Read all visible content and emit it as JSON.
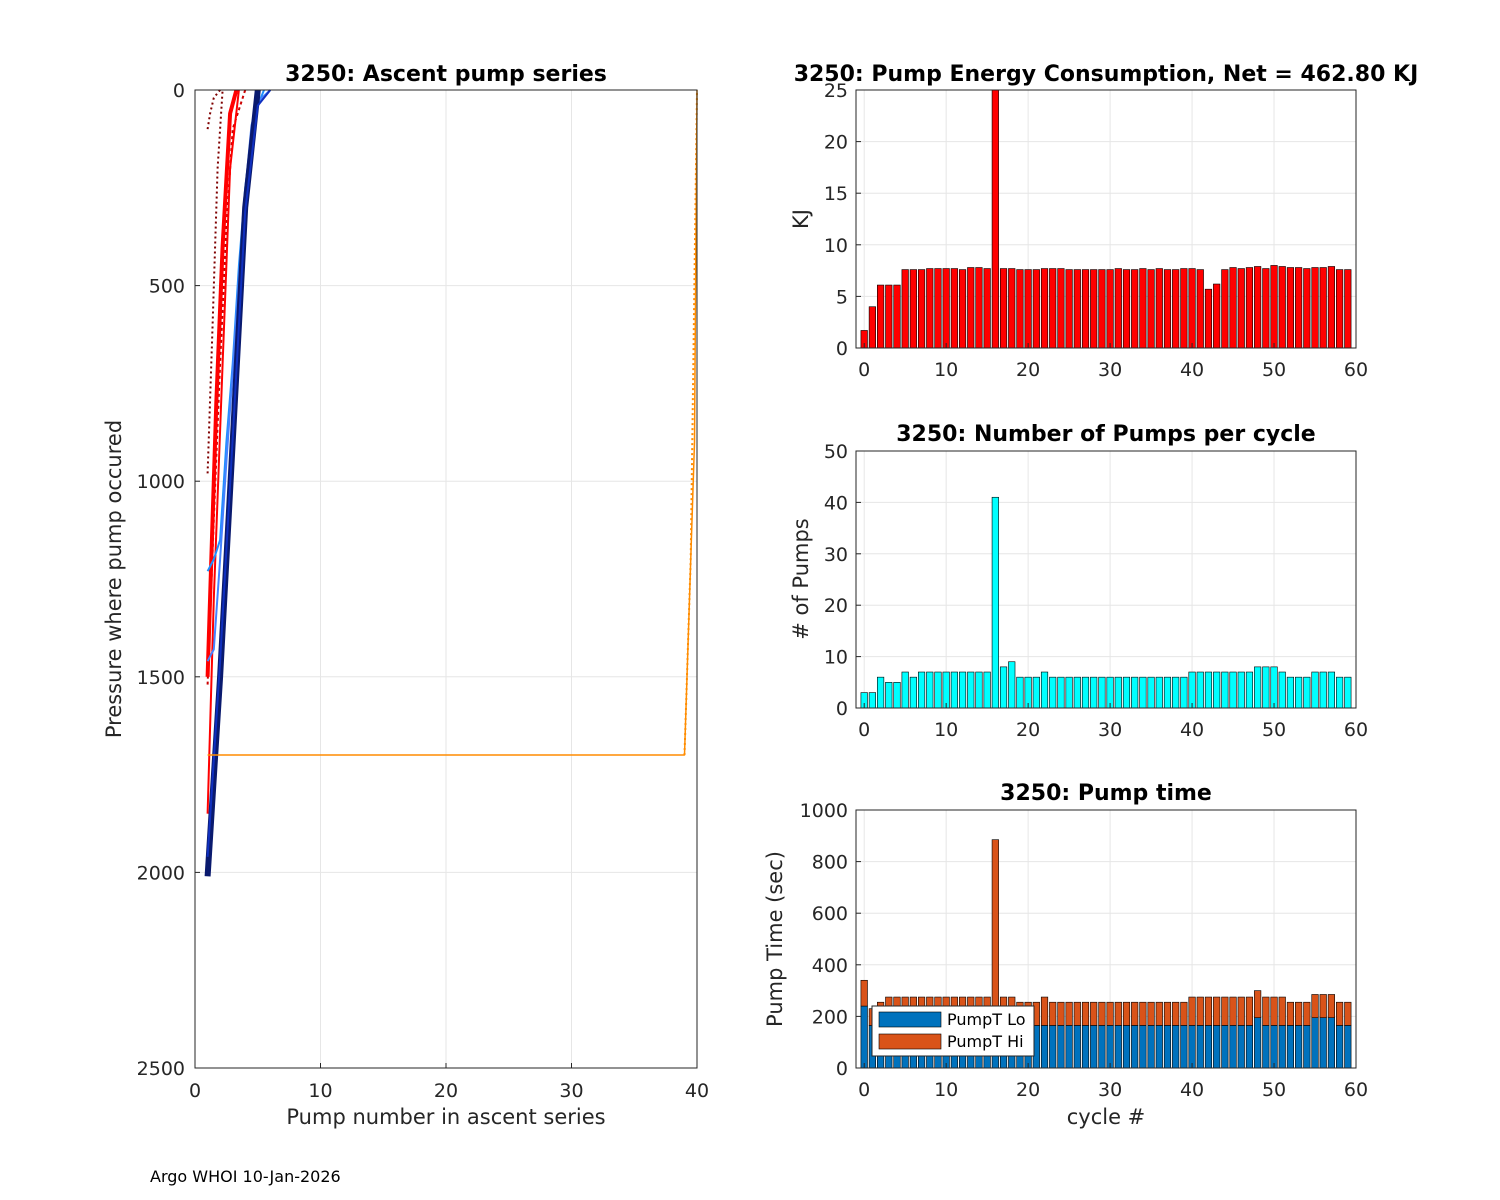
{
  "footer": "Argo WHOI 10-Jan-2026",
  "colors": {
    "energy": "#ff0000",
    "pumps": "#00ffff",
    "lo": "#0072bd",
    "hi": "#d95319",
    "grid": "#e6e6e6",
    "axis": "#262626"
  },
  "chart_data": [
    {
      "type": "line",
      "title": "3250: Ascent pump series",
      "xlabel": "Pump number in ascent series",
      "ylabel": "Pressure where pump occured",
      "xlim": [
        0,
        40
      ],
      "ylim": [
        0,
        2500
      ],
      "y_reversed": true,
      "xticks": [
        0,
        10,
        20,
        30,
        40
      ],
      "yticks": [
        0,
        500,
        1000,
        1500,
        2000,
        2500
      ],
      "series": [
        {
          "name": "early-dark-1",
          "color": "#7f0000",
          "dash": "2,3",
          "width": 2,
          "x": [
            1,
            1.2,
            1.5,
            2
          ],
          "y": [
            100,
            60,
            20,
            0
          ]
        },
        {
          "name": "early-dark-2",
          "color": "#7f0000",
          "dash": "2,3",
          "width": 2,
          "x": [
            1,
            1.4,
            1.8,
            2.2
          ],
          "y": [
            980,
            600,
            200,
            0
          ]
        },
        {
          "name": "early-red-1",
          "color": "#cc0000",
          "dash": "3,3",
          "width": 2,
          "x": [
            1,
            1.5,
            2,
            2.5,
            3,
            4
          ],
          "y": [
            1520,
            1100,
            700,
            350,
            100,
            0
          ]
        },
        {
          "name": "early-red-2",
          "color": "#ff0000",
          "dash": "",
          "width": 4,
          "x": [
            1,
            1.3,
            1.7,
            2.2,
            2.8,
            3.3
          ],
          "y": [
            1500,
            1200,
            800,
            400,
            60,
            0
          ]
        },
        {
          "name": "red-deep",
          "color": "#ff0000",
          "dash": "",
          "width": 2,
          "x": [
            1,
            1.5,
            2.2,
            2.8,
            3.5
          ],
          "y": [
            1850,
            1300,
            700,
            200,
            0
          ]
        },
        {
          "name": "light-blue-1",
          "color": "#1e90ff",
          "dash": "",
          "width": 2,
          "x": [
            1,
            1.5,
            2,
            2.5,
            3,
            3.5,
            4,
            4.5,
            5,
            5.5
          ],
          "y": [
            1230,
            1200,
            1150,
            900,
            700,
            450,
            250,
            120,
            40,
            0
          ]
        },
        {
          "name": "light-blue-2",
          "color": "#4682ff",
          "dash": "",
          "width": 2,
          "x": [
            1,
            1.5,
            2,
            2.5,
            3,
            3.5,
            4,
            4.5,
            5,
            6
          ],
          "y": [
            1460,
            1430,
            1200,
            950,
            720,
            480,
            260,
            90,
            30,
            0
          ]
        },
        {
          "name": "navy-main",
          "color": "#0a1a6e",
          "dash": "",
          "width": 6,
          "x": [
            1,
            2,
            3,
            4,
            5
          ],
          "y": [
            2010,
            1500,
            900,
            300,
            0
          ]
        },
        {
          "name": "blue-main",
          "color": "#1030c0",
          "dash": "",
          "width": 2,
          "x": [
            1,
            2,
            3,
            4,
            5,
            6
          ],
          "y": [
            1960,
            1460,
            890,
            310,
            40,
            0
          ]
        },
        {
          "name": "orange-long",
          "color": "#ff8c00",
          "dash": "",
          "width": 1.5,
          "x": [
            1,
            39,
            39.8,
            40
          ],
          "y": [
            1700,
            1700,
            900,
            0
          ]
        },
        {
          "name": "orange-dots",
          "color": "#ff8c00",
          "dash": "2,3",
          "width": 2,
          "x": [
            39,
            39.5,
            40
          ],
          "y": [
            1700,
            1200,
            0
          ]
        }
      ]
    },
    {
      "type": "bar",
      "title": "3250: Pump Energy Consumption,  Net = 462.80 KJ",
      "xlabel": "",
      "ylabel": "KJ",
      "xlim": [
        -1,
        60
      ],
      "ylim": [
        0,
        25
      ],
      "xticks": [
        0,
        10,
        20,
        30,
        40,
        50,
        60
      ],
      "yticks": [
        0,
        5,
        10,
        15,
        20,
        25
      ],
      "x": [
        0,
        1,
        2,
        3,
        4,
        5,
        6,
        7,
        8,
        9,
        10,
        11,
        12,
        13,
        14,
        15,
        16,
        17,
        18,
        19,
        20,
        21,
        22,
        23,
        24,
        25,
        26,
        27,
        28,
        29,
        30,
        31,
        32,
        33,
        34,
        35,
        36,
        37,
        38,
        39,
        40,
        41,
        42,
        43,
        44,
        45,
        46,
        47,
        48,
        49,
        50,
        51,
        52,
        53,
        54,
        55,
        56,
        57,
        58,
        59
      ],
      "values": [
        1.7,
        4.0,
        6.1,
        6.1,
        6.1,
        7.6,
        7.6,
        7.6,
        7.7,
        7.7,
        7.7,
        7.7,
        7.6,
        7.8,
        7.8,
        7.7,
        25,
        7.7,
        7.7,
        7.6,
        7.6,
        7.6,
        7.7,
        7.7,
        7.7,
        7.6,
        7.6,
        7.6,
        7.6,
        7.6,
        7.6,
        7.7,
        7.6,
        7.6,
        7.7,
        7.6,
        7.7,
        7.6,
        7.6,
        7.7,
        7.7,
        7.6,
        5.7,
        6.2,
        7.6,
        7.8,
        7.7,
        7.8,
        7.9,
        7.7,
        8.0,
        7.9,
        7.8,
        7.8,
        7.7,
        7.8,
        7.8,
        7.9,
        7.6,
        7.6
      ]
    },
    {
      "type": "bar",
      "title": "3250: Number of Pumps per cycle",
      "xlabel": "",
      "ylabel": "# of Pumps",
      "xlim": [
        -1,
        60
      ],
      "ylim": [
        0,
        50
      ],
      "xticks": [
        0,
        10,
        20,
        30,
        40,
        50,
        60
      ],
      "yticks": [
        0,
        10,
        20,
        30,
        40,
        50
      ],
      "x": [
        0,
        1,
        2,
        3,
        4,
        5,
        6,
        7,
        8,
        9,
        10,
        11,
        12,
        13,
        14,
        15,
        16,
        17,
        18,
        19,
        20,
        21,
        22,
        23,
        24,
        25,
        26,
        27,
        28,
        29,
        30,
        31,
        32,
        33,
        34,
        35,
        36,
        37,
        38,
        39,
        40,
        41,
        42,
        43,
        44,
        45,
        46,
        47,
        48,
        49,
        50,
        51,
        52,
        53,
        54,
        55,
        56,
        57,
        58,
        59
      ],
      "values": [
        3,
        3,
        6,
        5,
        5,
        7,
        6,
        7,
        7,
        7,
        7,
        7,
        7,
        7,
        7,
        7,
        41,
        8,
        9,
        6,
        6,
        6,
        7,
        6,
        6,
        6,
        6,
        6,
        6,
        6,
        6,
        6,
        6,
        6,
        6,
        6,
        6,
        6,
        6,
        6,
        7,
        7,
        7,
        7,
        7,
        7,
        7,
        7,
        8,
        8,
        8,
        7,
        6,
        6,
        6,
        7,
        7,
        7,
        6,
        6
      ]
    },
    {
      "type": "bar",
      "stacked": true,
      "title": "3250: Pump time",
      "xlabel": "cycle #",
      "ylabel": "Pump Time (sec)",
      "xlim": [
        -1,
        60
      ],
      "ylim": [
        0,
        1000
      ],
      "xticks": [
        0,
        10,
        20,
        30,
        40,
        50,
        60
      ],
      "yticks": [
        0,
        200,
        400,
        600,
        800,
        1000
      ],
      "x": [
        0,
        1,
        2,
        3,
        4,
        5,
        6,
        7,
        8,
        9,
        10,
        11,
        12,
        13,
        14,
        15,
        16,
        17,
        18,
        19,
        20,
        21,
        22,
        23,
        24,
        25,
        26,
        27,
        28,
        29,
        30,
        31,
        32,
        33,
        34,
        35,
        36,
        37,
        38,
        39,
        40,
        41,
        42,
        43,
        44,
        45,
        46,
        47,
        48,
        49,
        50,
        51,
        52,
        53,
        54,
        55,
        56,
        57,
        58,
        59
      ],
      "legend": [
        "PumpT Lo",
        "PumpT Hi"
      ],
      "series": [
        {
          "name": "PumpT Lo",
          "values": [
            240,
            165,
            165,
            165,
            165,
            165,
            165,
            165,
            165,
            165,
            165,
            165,
            165,
            165,
            165,
            165,
            165,
            165,
            165,
            165,
            165,
            165,
            165,
            165,
            165,
            165,
            165,
            165,
            165,
            165,
            165,
            165,
            165,
            165,
            165,
            165,
            165,
            165,
            165,
            165,
            165,
            165,
            165,
            165,
            165,
            165,
            165,
            165,
            195,
            165,
            165,
            165,
            165,
            165,
            165,
            195,
            195,
            195,
            165,
            165
          ]
        },
        {
          "name": "PumpT Hi",
          "values": [
            100,
            65,
            90,
            110,
            110,
            110,
            110,
            110,
            110,
            110,
            110,
            110,
            110,
            110,
            110,
            110,
            720,
            110,
            110,
            90,
            90,
            90,
            110,
            90,
            90,
            90,
            90,
            90,
            90,
            90,
            90,
            90,
            90,
            90,
            90,
            90,
            90,
            90,
            90,
            90,
            110,
            110,
            110,
            110,
            110,
            110,
            110,
            110,
            105,
            110,
            110,
            110,
            90,
            90,
            90,
            90,
            90,
            90,
            90,
            90
          ]
        }
      ]
    }
  ]
}
